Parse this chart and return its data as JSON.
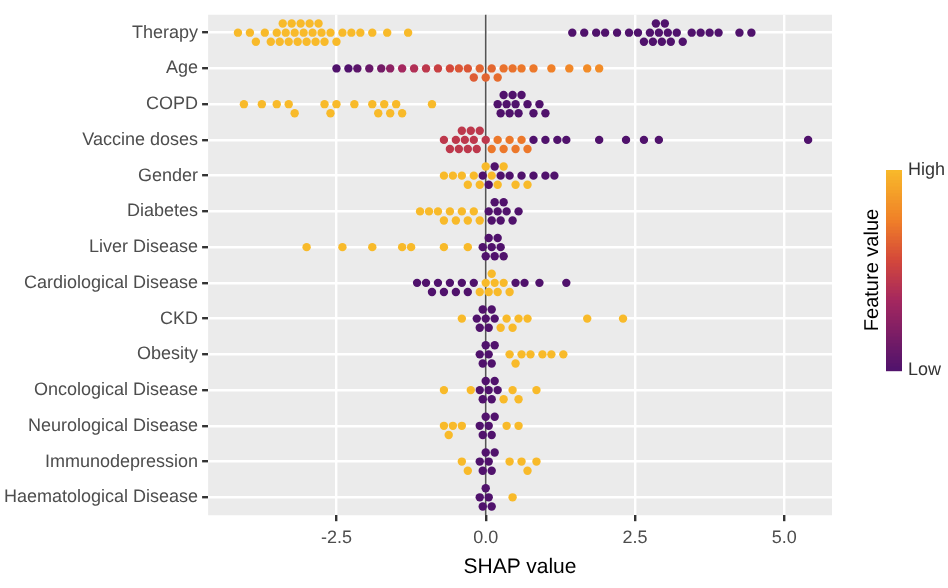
{
  "chart_data": {
    "type": "scatter",
    "orientation": "horizontal",
    "xlabel": "SHAP value",
    "clabel": "Feature value",
    "marker": "circle",
    "grid": true,
    "legend": false,
    "categories": [
      "Therapy",
      "Age",
      "COPD",
      "Vaccine doses",
      "Gender",
      "Diabetes",
      "Liver Disease",
      "Cardiological Disease",
      "CKD",
      "Obesity",
      "Oncological Disease",
      "Neurological Disease",
      "Immunodepression",
      "Haematological Disease"
    ],
    "xlim": [
      -4.65,
      5.8
    ],
    "xticks": [
      -2.5,
      {
        "value": 0,
        "label": "0.0"
      },
      2.5,
      {
        "value": 5,
        "label": "5.0"
      }
    ],
    "clim": [
      0,
      1
    ],
    "cticks": [
      {
        "value": 0,
        "label": "Low"
      },
      {
        "value": 1,
        "label": "High"
      }
    ],
    "ref_lines": [
      {
        "axis": "x",
        "value": 0,
        "color": "#555555"
      }
    ],
    "series": [
      {
        "x": [
          "Therapy",
          "Therapy",
          "Therapy",
          "Therapy",
          "Therapy",
          "Therapy",
          "Therapy",
          "Therapy",
          "Therapy",
          "Therapy",
          "Therapy",
          "Therapy",
          "Therapy",
          "Therapy",
          "Therapy",
          "Therapy",
          "Therapy",
          "Therapy",
          "Therapy",
          "Therapy",
          "Therapy",
          "Therapy",
          "Therapy",
          "Therapy",
          "Therapy",
          "Therapy",
          "Therapy",
          "Therapy",
          "Therapy",
          "Therapy",
          "Therapy",
          "Therapy",
          "Therapy",
          "Therapy",
          "Therapy",
          "Therapy",
          "Therapy",
          "Therapy",
          "Therapy",
          "Therapy",
          "Therapy",
          "Therapy",
          "Therapy",
          "Therapy",
          "Therapy",
          "Therapy",
          "Therapy",
          "Therapy",
          "Therapy",
          "Therapy",
          "Therapy",
          "Therapy",
          "Therapy",
          "Therapy"
        ],
        "values": [
          -4.15,
          -3.95,
          -3.85,
          -3.7,
          -3.6,
          -3.5,
          -3.45,
          -3.4,
          -3.35,
          -3.3,
          -3.25,
          -3.2,
          -3.15,
          -3.1,
          -3.05,
          -3.0,
          -2.95,
          -2.9,
          -2.85,
          -2.8,
          -2.75,
          -2.7,
          -2.6,
          -2.5,
          -2.4,
          -2.25,
          -2.1,
          -1.9,
          -1.65,
          -1.3,
          1.45,
          1.65,
          1.85,
          2.0,
          2.2,
          2.4,
          2.55,
          2.65,
          2.75,
          2.8,
          2.85,
          2.9,
          2.95,
          3.0,
          3.05,
          3.1,
          3.2,
          3.3,
          3.45,
          3.6,
          3.75,
          3.9,
          4.25,
          4.45
        ],
        "colors": [
          "#f8ba2a",
          "#f8ba2a",
          "#f8ba2a",
          "#f8ba2a",
          "#f8ba2a",
          "#f8ba2a",
          "#f8ba2a",
          "#f8ba2a",
          "#f8ba2a",
          "#f8ba2a",
          "#f8ba2a",
          "#f8ba2a",
          "#f8ba2a",
          "#f8ba2a",
          "#f8ba2a",
          "#f8ba2a",
          "#f8ba2a",
          "#f8ba2a",
          "#f8ba2a",
          "#f8ba2a",
          "#f8ba2a",
          "#f8ba2a",
          "#f8ba2a",
          "#f8ba2a",
          "#f8ba2a",
          "#f8ba2a",
          "#f8ba2a",
          "#f8ba2a",
          "#f8ba2a",
          "#f8ba2a",
          "#50126c",
          "#50126c",
          "#50126c",
          "#50126c",
          "#50126c",
          "#50126c",
          "#50126c",
          "#50126c",
          "#50126c",
          "#50126c",
          "#50126c",
          "#50126c",
          "#50126c",
          "#50126c",
          "#50126c",
          "#50126c",
          "#50126c",
          "#50126c",
          "#50126c",
          "#50126c",
          "#50126c",
          "#50126c",
          "#50126c",
          "#50126c"
        ]
      },
      {
        "x": [
          "Age",
          "Age",
          "Age",
          "Age",
          "Age",
          "Age",
          "Age",
          "Age",
          "Age",
          "Age",
          "Age",
          "Age",
          "Age",
          "Age",
          "Age",
          "Age",
          "Age",
          "Age",
          "Age",
          "Age",
          "Age",
          "Age",
          "Age",
          "Age",
          "Age",
          "Age"
        ],
        "values": [
          -2.5,
          -2.3,
          -2.15,
          -1.95,
          -1.75,
          -1.6,
          -1.4,
          -1.2,
          -1.0,
          -0.8,
          -0.6,
          -0.45,
          -0.3,
          -0.2,
          -0.1,
          0.0,
          0.1,
          0.2,
          0.3,
          0.45,
          0.6,
          0.8,
          1.1,
          1.4,
          1.7,
          1.9
        ],
        "colors": [
          "#50126c",
          "#50126c",
          "#5c156a",
          "#681868",
          "#741b66",
          "#8d2263",
          "#a5285f",
          "#b13056",
          "#bd384c",
          "#c84043",
          "#d4483a",
          "#db5636",
          "#db5636",
          "#de5c34",
          "#e26431",
          "#e26431",
          "#e36730",
          "#e66c2e",
          "#e9722d",
          "#e9722d",
          "#ec782b",
          "#ec782b",
          "#f08028",
          "#f18728",
          "#f28c28",
          "#f28c28"
        ]
      },
      {
        "x": [
          "COPD",
          "COPD",
          "COPD",
          "COPD",
          "COPD",
          "COPD",
          "COPD",
          "COPD",
          "COPD",
          "COPD",
          "COPD",
          "COPD",
          "COPD",
          "COPD",
          "COPD",
          "COPD",
          "COPD",
          "COPD",
          "COPD",
          "COPD",
          "COPD",
          "COPD",
          "COPD",
          "COPD",
          "COPD",
          "COPD",
          "COPD",
          "COPD",
          "COPD"
        ],
        "values": [
          -4.05,
          -3.75,
          -3.5,
          -3.3,
          -3.2,
          -2.7,
          -2.6,
          -2.5,
          -2.2,
          -1.9,
          -1.8,
          -1.7,
          -1.6,
          -1.5,
          -1.4,
          -0.9,
          0.2,
          0.25,
          0.3,
          0.35,
          0.4,
          0.45,
          0.5,
          0.55,
          0.6,
          0.7,
          0.8,
          0.9,
          1.0
        ],
        "colors": [
          "#f8ba2a",
          "#f8ba2a",
          "#f8ba2a",
          "#f8ba2a",
          "#f8ba2a",
          "#f8ba2a",
          "#f8ba2a",
          "#f8ba2a",
          "#f8ba2a",
          "#f8ba2a",
          "#f8ba2a",
          "#f8ba2a",
          "#f8ba2a",
          "#f8ba2a",
          "#f8ba2a",
          "#f8ba2a",
          "#50126c",
          "#50126c",
          "#50126c",
          "#50126c",
          "#50126c",
          "#50126c",
          "#50126c",
          "#50126c",
          "#50126c",
          "#50126c",
          "#50126c",
          "#50126c",
          "#50126c"
        ]
      },
      {
        "x": [
          "Vaccine doses",
          "Vaccine doses",
          "Vaccine doses",
          "Vaccine doses",
          "Vaccine doses",
          "Vaccine doses",
          "Vaccine doses",
          "Vaccine doses",
          "Vaccine doses",
          "Vaccine doses",
          "Vaccine doses",
          "Vaccine doses",
          "Vaccine doses",
          "Vaccine doses",
          "Vaccine doses",
          "Vaccine doses",
          "Vaccine doses",
          "Vaccine doses",
          "Vaccine doses",
          "Vaccine doses",
          "Vaccine doses",
          "Vaccine doses",
          "Vaccine doses",
          "Vaccine doses",
          "Vaccine doses",
          "Vaccine doses",
          "Vaccine doses",
          "Vaccine doses"
        ],
        "values": [
          -0.7,
          -0.6,
          -0.5,
          -0.45,
          -0.4,
          -0.35,
          -0.3,
          -0.25,
          -0.2,
          -0.15,
          -0.1,
          0.0,
          0.1,
          0.2,
          0.3,
          0.4,
          0.5,
          0.6,
          0.7,
          0.8,
          1.0,
          1.2,
          1.35,
          1.9,
          2.35,
          2.65,
          2.9,
          5.4
        ],
        "colors": [
          "#bd384c",
          "#bd384c",
          "#bd384c",
          "#bd384c",
          "#bd384c",
          "#bd384c",
          "#bd384c",
          "#bd384c",
          "#bd384c",
          "#bd384c",
          "#bd384c",
          "#bd384c",
          "#ec782b",
          "#ec782b",
          "#ec782b",
          "#ec782b",
          "#ec782b",
          "#ec782b",
          "#ec782b",
          "#50126c",
          "#50126c",
          "#50126c",
          "#50126c",
          "#50126c",
          "#50126c",
          "#50126c",
          "#50126c",
          "#50126c"
        ]
      },
      {
        "x": [
          "Gender",
          "Gender",
          "Gender",
          "Gender",
          "Gender",
          "Gender",
          "Gender",
          "Gender",
          "Gender",
          "Gender",
          "Gender",
          "Gender",
          "Gender",
          "Gender",
          "Gender",
          "Gender",
          "Gender",
          "Gender",
          "Gender",
          "Gender",
          "Gender"
        ],
        "values": [
          -0.7,
          -0.55,
          -0.4,
          -0.3,
          -0.2,
          -0.1,
          0.0,
          0.1,
          0.2,
          0.3,
          0.5,
          0.7,
          -0.05,
          0.05,
          0.15,
          0.25,
          0.4,
          0.6,
          0.8,
          1.0,
          1.15
        ],
        "colors": [
          "#f8ba2a",
          "#f8ba2a",
          "#f8ba2a",
          "#f8ba2a",
          "#f8ba2a",
          "#f8ba2a",
          "#f8ba2a",
          "#f8ba2a",
          "#f8ba2a",
          "#f8ba2a",
          "#f8ba2a",
          "#f8ba2a",
          "#50126c",
          "#50126c",
          "#50126c",
          "#50126c",
          "#50126c",
          "#50126c",
          "#50126c",
          "#50126c",
          "#50126c"
        ]
      },
      {
        "x": [
          "Diabetes",
          "Diabetes",
          "Diabetes",
          "Diabetes",
          "Diabetes",
          "Diabetes",
          "Diabetes",
          "Diabetes",
          "Diabetes",
          "Diabetes",
          "Diabetes",
          "Diabetes",
          "Diabetes",
          "Diabetes",
          "Diabetes",
          "Diabetes",
          "Diabetes",
          "Diabetes",
          "Diabetes"
        ],
        "values": [
          -1.1,
          -0.95,
          -0.8,
          -0.7,
          -0.6,
          -0.5,
          -0.4,
          -0.3,
          -0.2,
          -0.1,
          0.05,
          0.1,
          0.15,
          0.2,
          0.25,
          0.3,
          0.35,
          0.45,
          0.55
        ],
        "colors": [
          "#f8ba2a",
          "#f8ba2a",
          "#f8ba2a",
          "#f8ba2a",
          "#f8ba2a",
          "#f8ba2a",
          "#f8ba2a",
          "#f8ba2a",
          "#f8ba2a",
          "#f8ba2a",
          "#50126c",
          "#50126c",
          "#50126c",
          "#50126c",
          "#50126c",
          "#50126c",
          "#50126c",
          "#50126c",
          "#50126c"
        ]
      },
      {
        "x": [
          "Liver Disease",
          "Liver Disease",
          "Liver Disease",
          "Liver Disease",
          "Liver Disease",
          "Liver Disease",
          "Liver Disease",
          "Liver Disease",
          "Liver Disease",
          "Liver Disease",
          "Liver Disease",
          "Liver Disease",
          "Liver Disease",
          "Liver Disease",
          "Liver Disease"
        ],
        "values": [
          -3.0,
          -2.4,
          -1.9,
          -1.4,
          -1.25,
          -0.7,
          -0.3,
          -0.05,
          0.0,
          0.05,
          0.1,
          0.15,
          0.2,
          0.25,
          0.3
        ],
        "colors": [
          "#f8ba2a",
          "#f8ba2a",
          "#f8ba2a",
          "#f8ba2a",
          "#f8ba2a",
          "#f8ba2a",
          "#f8ba2a",
          "#50126c",
          "#50126c",
          "#50126c",
          "#50126c",
          "#50126c",
          "#50126c",
          "#50126c",
          "#50126c"
        ]
      },
      {
        "x": [
          "Cardiological Disease",
          "Cardiological Disease",
          "Cardiological Disease",
          "Cardiological Disease",
          "Cardiological Disease",
          "Cardiological Disease",
          "Cardiological Disease",
          "Cardiological Disease",
          "Cardiological Disease",
          "Cardiological Disease",
          "Cardiological Disease",
          "Cardiological Disease",
          "Cardiological Disease",
          "Cardiological Disease",
          "Cardiological Disease",
          "Cardiological Disease",
          "Cardiological Disease",
          "Cardiological Disease",
          "Cardiological Disease",
          "Cardiological Disease",
          "Cardiological Disease",
          "Cardiological Disease"
        ],
        "values": [
          -1.15,
          -1.0,
          -0.9,
          -0.8,
          -0.7,
          -0.6,
          -0.5,
          -0.4,
          -0.3,
          -0.2,
          -0.1,
          0.0,
          0.05,
          0.1,
          0.15,
          0.2,
          0.3,
          0.4,
          0.5,
          0.65,
          0.9,
          1.35
        ],
        "colors": [
          "#50126c",
          "#50126c",
          "#50126c",
          "#50126c",
          "#50126c",
          "#50126c",
          "#50126c",
          "#50126c",
          "#50126c",
          "#50126c",
          "#f8ba2a",
          "#f8ba2a",
          "#f8ba2a",
          "#f8ba2a",
          "#f8ba2a",
          "#f8ba2a",
          "#f8ba2a",
          "#f8ba2a",
          "#50126c",
          "#50126c",
          "#50126c",
          "#50126c"
        ]
      },
      {
        "x": [
          "CKD",
          "CKD",
          "CKD",
          "CKD",
          "CKD",
          "CKD",
          "CKD",
          "CKD",
          "CKD",
          "CKD",
          "CKD",
          "CKD",
          "CKD",
          "CKD",
          "CKD"
        ],
        "values": [
          -0.4,
          -0.15,
          -0.1,
          -0.05,
          0.0,
          0.05,
          0.1,
          0.15,
          0.25,
          0.35,
          0.45,
          0.55,
          0.7,
          1.7,
          2.3
        ],
        "colors": [
          "#f8ba2a",
          "#50126c",
          "#50126c",
          "#50126c",
          "#50126c",
          "#50126c",
          "#50126c",
          "#50126c",
          "#f8ba2a",
          "#f8ba2a",
          "#f8ba2a",
          "#f8ba2a",
          "#f8ba2a",
          "#f8ba2a",
          "#f8ba2a"
        ]
      },
      {
        "x": [
          "Obesity",
          "Obesity",
          "Obesity",
          "Obesity",
          "Obesity",
          "Obesity",
          "Obesity",
          "Obesity",
          "Obesity",
          "Obesity",
          "Obesity",
          "Obesity",
          "Obesity"
        ],
        "values": [
          -0.1,
          -0.05,
          0.0,
          0.05,
          0.1,
          0.15,
          0.4,
          0.5,
          0.6,
          0.75,
          0.95,
          1.1,
          1.3
        ],
        "colors": [
          "#50126c",
          "#50126c",
          "#50126c",
          "#50126c",
          "#50126c",
          "#50126c",
          "#f8ba2a",
          "#f8ba2a",
          "#f8ba2a",
          "#f8ba2a",
          "#f8ba2a",
          "#f8ba2a",
          "#f8ba2a"
        ]
      },
      {
        "x": [
          "Oncological Disease",
          "Oncological Disease",
          "Oncological Disease",
          "Oncological Disease",
          "Oncological Disease",
          "Oncological Disease",
          "Oncological Disease",
          "Oncological Disease",
          "Oncological Disease",
          "Oncological Disease",
          "Oncological Disease",
          "Oncological Disease",
          "Oncological Disease"
        ],
        "values": [
          -0.7,
          -0.25,
          -0.1,
          -0.05,
          0.0,
          0.05,
          0.1,
          0.15,
          0.2,
          0.3,
          0.45,
          0.55,
          0.85
        ],
        "colors": [
          "#f8ba2a",
          "#f8ba2a",
          "#50126c",
          "#50126c",
          "#50126c",
          "#50126c",
          "#50126c",
          "#50126c",
          "#50126c",
          "#f8ba2a",
          "#f8ba2a",
          "#f8ba2a",
          "#f8ba2a"
        ]
      },
      {
        "x": [
          "Neurological Disease",
          "Neurological Disease",
          "Neurological Disease",
          "Neurological Disease",
          "Neurological Disease",
          "Neurological Disease",
          "Neurological Disease",
          "Neurological Disease",
          "Neurological Disease",
          "Neurological Disease",
          "Neurological Disease",
          "Neurological Disease"
        ],
        "values": [
          -0.7,
          -0.62,
          -0.55,
          -0.4,
          -0.1,
          -0.05,
          0.0,
          0.05,
          0.1,
          0.15,
          0.35,
          0.55
        ],
        "colors": [
          "#f8ba2a",
          "#f8ba2a",
          "#f8ba2a",
          "#f8ba2a",
          "#50126c",
          "#50126c",
          "#50126c",
          "#50126c",
          "#50126c",
          "#50126c",
          "#f8ba2a",
          "#f8ba2a"
        ]
      },
      {
        "x": [
          "Immunodepression",
          "Immunodepression",
          "Immunodepression",
          "Immunodepression",
          "Immunodepression",
          "Immunodepression",
          "Immunodepression",
          "Immunodepression",
          "Immunodepression",
          "Immunodepression",
          "Immunodepression",
          "Immunodepression"
        ],
        "values": [
          -0.4,
          -0.3,
          -0.1,
          -0.05,
          0.0,
          0.05,
          0.1,
          0.15,
          0.4,
          0.6,
          0.7,
          0.85
        ],
        "colors": [
          "#f8ba2a",
          "#f8ba2a",
          "#50126c",
          "#50126c",
          "#50126c",
          "#50126c",
          "#50126c",
          "#50126c",
          "#f8ba2a",
          "#f8ba2a",
          "#f8ba2a",
          "#f8ba2a"
        ]
      },
      {
        "x": [
          "Haematological Disease",
          "Haematological Disease",
          "Haematological Disease",
          "Haematological Disease",
          "Haematological Disease",
          "Haematological Disease"
        ],
        "values": [
          -0.1,
          -0.05,
          0.0,
          0.05,
          0.1,
          0.45
        ],
        "colors": [
          "#50126c",
          "#50126c",
          "#50126c",
          "#50126c",
          "#50126c",
          "#f8ba2a"
        ]
      }
    ]
  }
}
